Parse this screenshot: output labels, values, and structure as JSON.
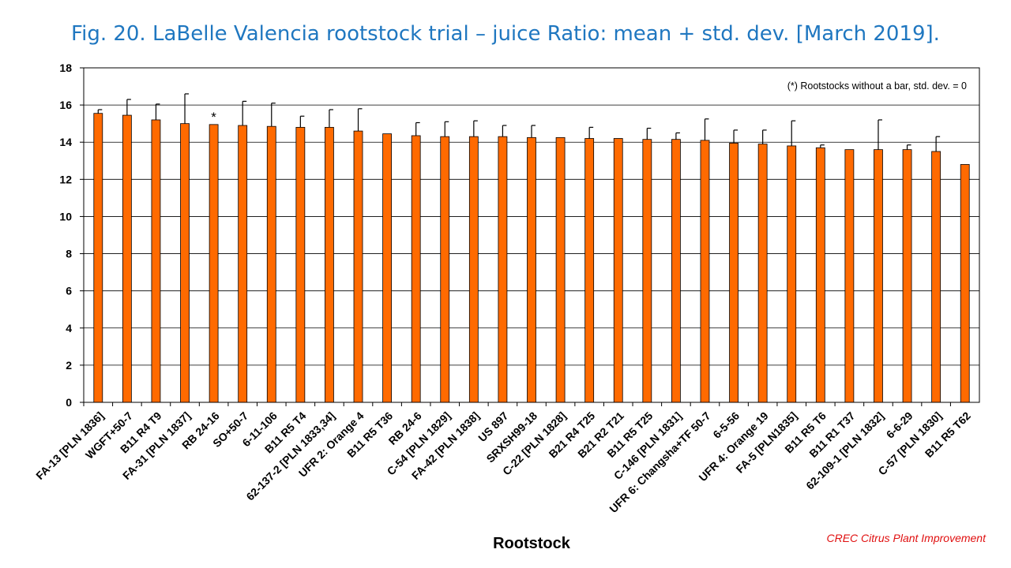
{
  "title": "Fig. 20. LaBelle Valencia rootstock trial – juice Ratio: mean + std. dev. [March 2019].",
  "credit": "CREC Citrus Plant Improvement",
  "chart_data": {
    "type": "bar",
    "xlabel": "Rootstock",
    "ylabel": "",
    "ylim": [
      0,
      18
    ],
    "yticks": [
      0,
      2,
      4,
      6,
      8,
      10,
      12,
      14,
      16,
      18
    ],
    "grid": true,
    "bar_color": "#ff6a00",
    "annotation": "(*) Rootstocks without  a bar, std. dev. = 0",
    "star_label": "*",
    "star_categories": [
      "RB 24-16"
    ],
    "categories": [
      "FA-13 [PLN 1836]",
      "WGFT+50-7",
      "B11 R4 T9",
      "FA-31 [PLN 1837]",
      "RB 24-16",
      "SO+50-7",
      "6-11-106",
      "B11 R5 T4",
      "62-137-2 [PLN 1833,34]",
      "UFR 2: Orange 4",
      "B11 R5 T36",
      "RB 24-6",
      "C-54 [PLN 1829]",
      "FA-42 [PLN 1838]",
      "US 897",
      "SRXSH99-18",
      "C-22 [PLN 1828]",
      "B21 R4 T25",
      "B21 R2 T21",
      "B11 R5 T25",
      "C-146 [PLN 1831]",
      "UFR 6: Changsha+TF 50-7",
      "6-5-56",
      "UFR 4: Orange 19",
      "FA-5 [PLN1835]",
      "B11 R5 T6",
      "B11 R1 T37",
      "62-109-1 [PLN 1832]",
      "6-6-29",
      "C-57 [PLN 1830]",
      "B11 R5 T62"
    ],
    "series": [
      {
        "values": [
          15.55,
          15.45,
          15.2,
          15.0,
          14.95,
          14.9,
          14.85,
          14.8,
          14.8,
          14.6,
          14.45,
          14.35,
          14.3,
          14.3,
          14.3,
          14.25,
          14.25,
          14.2,
          14.2,
          14.15,
          14.15,
          14.1,
          13.95,
          13.9,
          13.8,
          13.7,
          13.6,
          13.6,
          13.6,
          13.5,
          12.8
        ],
        "std_dev": [
          0.2,
          0.85,
          0.85,
          1.6,
          0.0,
          1.3,
          1.25,
          0.6,
          0.95,
          1.2,
          0.0,
          0.7,
          0.8,
          0.85,
          0.6,
          0.65,
          0.0,
          0.6,
          0.0,
          0.6,
          0.35,
          1.15,
          0.7,
          0.75,
          1.35,
          0.15,
          0.0,
          1.6,
          0.25,
          0.8,
          0.0
        ]
      }
    ]
  }
}
